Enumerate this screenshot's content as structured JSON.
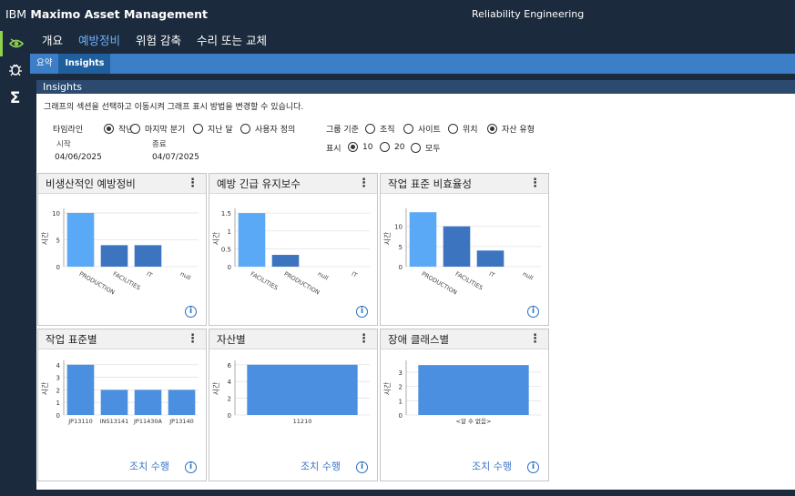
{
  "header": {
    "brand_prefix": "IBM",
    "brand_name": "Maximo Asset Management",
    "app_title": "Reliability Engineering"
  },
  "rail": {
    "icons": [
      "eye-icon",
      "bug-icon",
      "sigma-icon"
    ],
    "sigma_glyph": "Σ"
  },
  "main_tabs": [
    {
      "label": "개요"
    },
    {
      "label": "예방정비"
    },
    {
      "label": "위험 감축"
    },
    {
      "label": "수리 또는 교체"
    }
  ],
  "sub_tabs": [
    {
      "label": "요약"
    },
    {
      "label": "Insights"
    }
  ],
  "panel": {
    "title": "Insights",
    "description": "그래프의 섹션을 선택하고 이동시켜 그래프 표시 방법을 변경할 수 있습니다."
  },
  "timeline": {
    "label": "타임라인",
    "options": [
      "작년",
      "마지막 분기",
      "지난 달",
      "사용자 정의"
    ],
    "selected": "작년",
    "start_label": "시작",
    "start_value": "04/06/2025",
    "end_label": "종료",
    "end_value": "04/07/2025"
  },
  "group": {
    "label": "그룹 기준",
    "options": [
      "조직",
      "사이트",
      "위치",
      "자산 유형"
    ],
    "selected": "자산 유형"
  },
  "display": {
    "label": "표시",
    "options": [
      "10",
      "20",
      "모두"
    ],
    "selected": "10"
  },
  "cards": [
    {
      "title": "비생산적인 예방정비",
      "action": ""
    },
    {
      "title": "예방 긴급 유지보수",
      "action": ""
    },
    {
      "title": "작업 표준 비효율성",
      "action": ""
    },
    {
      "title": "작업 표준별",
      "action": "조치 수행"
    },
    {
      "title": "자산별",
      "action": "조치 수행"
    },
    {
      "title": "장애 클래스별",
      "action": "조치 수행"
    }
  ],
  "chart_data": [
    {
      "type": "bar",
      "categories": [
        "PRODUCTION",
        "FACILITIES",
        "IT",
        "null"
      ],
      "values": [
        10,
        4,
        4,
        0
      ],
      "ylabel": "시간",
      "yticks": [
        0,
        5,
        10
      ],
      "ylim": [
        0,
        10.5
      ],
      "colors": [
        "#5aa9f7",
        "#3d74c0",
        "#3d74c0",
        "#3d74c0"
      ]
    },
    {
      "type": "bar",
      "categories": [
        "FACILITIES",
        "PRODUCTION",
        "null",
        "IT"
      ],
      "values": [
        1.5,
        0.33,
        0,
        0
      ],
      "ylabel": "시간",
      "yticks": [
        0,
        0.5,
        1,
        1.5
      ],
      "ylim": [
        0,
        1.58
      ],
      "colors": [
        "#5aa9f7",
        "#3d74c0",
        "#3d74c0",
        "#3d74c0"
      ]
    },
    {
      "type": "bar",
      "categories": [
        "PRODUCTION",
        "FACILITIES",
        "IT",
        "null"
      ],
      "values": [
        13.5,
        10,
        4,
        0
      ],
      "ylabel": "시간",
      "yticks": [
        0,
        5,
        10
      ],
      "ylim": [
        0,
        14
      ],
      "colors": [
        "#5aa9f7",
        "#3d74c0",
        "#3d74c0",
        "#3d74c0"
      ]
    },
    {
      "type": "bar",
      "categories": [
        "JP13110",
        "INS13141",
        "JP11430A",
        "JP13140"
      ],
      "values": [
        4,
        2,
        2,
        2
      ],
      "ylabel": "시간",
      "yticks": [
        0,
        1,
        2,
        3,
        4
      ],
      "ylim": [
        0,
        4.2
      ],
      "colors": [
        "#4a8fe0",
        "#4a8fe0",
        "#4a8fe0",
        "#4a8fe0"
      ]
    },
    {
      "type": "bar",
      "categories": [
        "11210"
      ],
      "values": [
        6
      ],
      "ylabel": "시간",
      "yticks": [
        0,
        2,
        4,
        6
      ],
      "ylim": [
        0,
        6.3
      ],
      "colors": [
        "#4a8fe0"
      ]
    },
    {
      "type": "bar",
      "categories": [
        "<알 수 없음>"
      ],
      "values": [
        3.5
      ],
      "ylabel": "시간",
      "yticks": [
        0,
        1,
        2,
        3
      ],
      "ylim": [
        0,
        3.7
      ],
      "colors": [
        "#4a8fe0"
      ]
    }
  ]
}
